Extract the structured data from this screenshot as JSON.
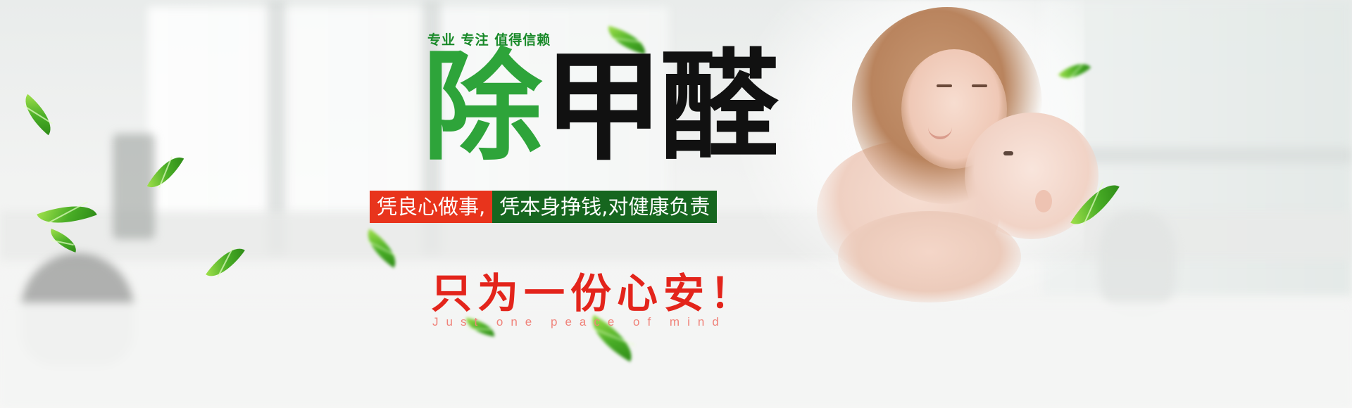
{
  "banner": {
    "tagline": "专业 专注 值得信赖",
    "headline_part1": "除",
    "headline_part2": "甲醛",
    "slogan_part1": "凭良心做事,",
    "slogan_part2": "凭本身挣钱,对健康负责",
    "peace_cn": "只为一份心安！",
    "peace_en": "Just one peace of mind"
  },
  "colors": {
    "brand_green": "#2ea43a",
    "dark_green": "#16661f",
    "accent_red": "#e8341c",
    "text_black": "#111111"
  },
  "icons": [
    "leaf-icon"
  ]
}
